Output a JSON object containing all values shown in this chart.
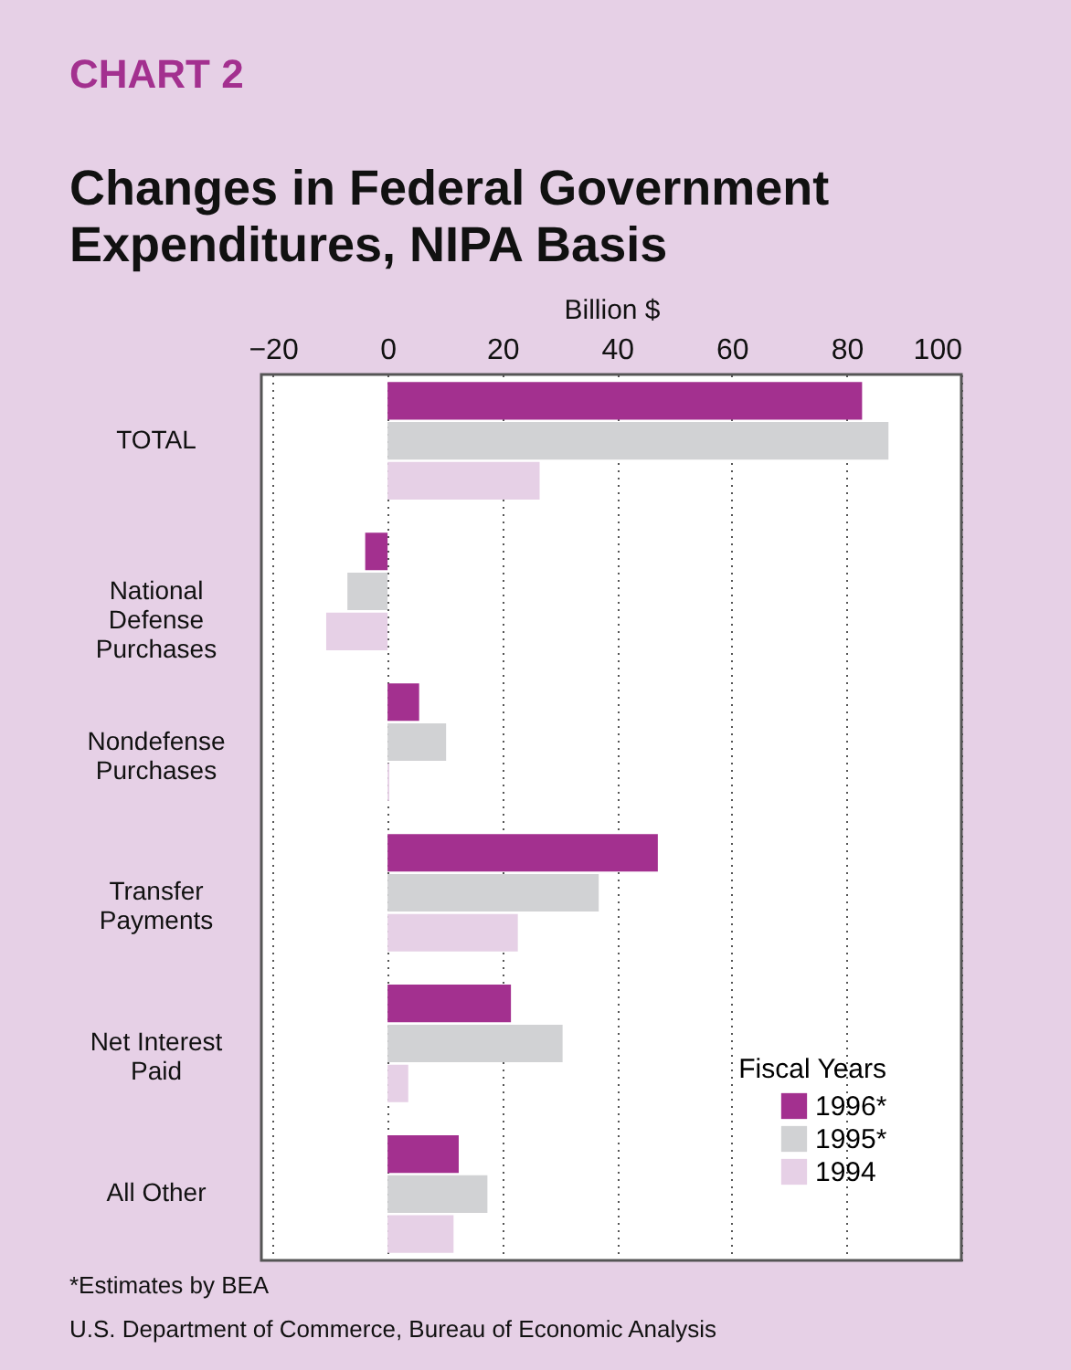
{
  "chart_data": {
    "type": "bar",
    "orientation": "horizontal",
    "title": "Changes in Federal Government Expenditures, NIPA Basis",
    "xlabel": "Billion $",
    "legend_title": "Fiscal Years",
    "legend": "bottom right",
    "grid": "x",
    "annotations": [
      "CHART 2",
      "*Estimates by BEA",
      "U.S. Department of Commerce, Bureau of Economic Analysis"
    ],
    "categories": [
      "TOTAL",
      "National Defense Purchases",
      "Nondefense Purchases",
      "Transfer Payments",
      "Net Interest Paid",
      "All Other"
    ],
    "xlim": [
      -22,
      100
    ],
    "xticks": [
      -20,
      0,
      20,
      40,
      60,
      80,
      100
    ],
    "series": [
      {
        "name": "1996*",
        "color": "#a3308f",
        "values": [
          82.7,
          -3.9,
          5.5,
          47.1,
          21.5,
          12.4
        ]
      },
      {
        "name": "1995*",
        "color": "#d1d2d4",
        "values": [
          87.3,
          -7.0,
          10.2,
          36.8,
          30.5,
          17.4
        ]
      },
      {
        "name": "1994",
        "color": "#e6d0e6",
        "values": [
          26.5,
          -10.7,
          0.3,
          22.7,
          3.6,
          11.5
        ]
      }
    ]
  }
}
